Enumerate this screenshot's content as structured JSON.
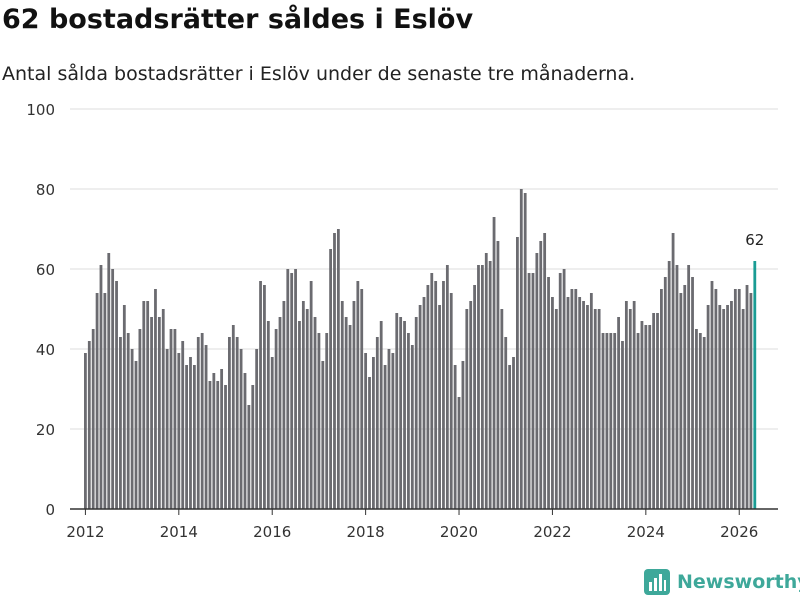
{
  "header": {
    "title": "62 bostadsrätter såldes i Eslöv",
    "subtitle": "Antal sålda bostadsrätter i Eslöv under de senaste tre månaderna."
  },
  "brand": {
    "name": "Newsworthy"
  },
  "colors": {
    "bar": "#6b6b70",
    "highlight": "#1a9c94",
    "grid": "#dcdcdc",
    "brand": "#3ea89a"
  },
  "chart_data": {
    "type": "bar",
    "title": "62 bostadsrätter såldes i Eslöv",
    "xlabel": "",
    "ylabel": "",
    "ylim": [
      0,
      100
    ],
    "yticks": [
      "0",
      "20",
      "40",
      "60",
      "80",
      "100"
    ],
    "xlim": [
      2011.67,
      2026.83
    ],
    "xticks": [
      "2012",
      "2014",
      "2016",
      "2018",
      "2020",
      "2022",
      "2024",
      "2026"
    ],
    "start": "2012-01",
    "highlight_label": "62",
    "values": [
      39,
      42,
      45,
      54,
      61,
      54,
      64,
      60,
      57,
      43,
      51,
      44,
      40,
      37,
      45,
      52,
      52,
      48,
      55,
      48,
      50,
      40,
      45,
      45,
      39,
      42,
      36,
      38,
      36,
      43,
      44,
      41,
      32,
      34,
      32,
      35,
      31,
      43,
      46,
      43,
      40,
      34,
      26,
      31,
      40,
      57,
      56,
      47,
      38,
      45,
      48,
      52,
      60,
      59,
      60,
      47,
      52,
      50,
      57,
      48,
      44,
      37,
      44,
      65,
      69,
      70,
      52,
      48,
      46,
      52,
      57,
      55,
      39,
      33,
      38,
      43,
      47,
      36,
      40,
      39,
      49,
      48,
      47,
      44,
      41,
      48,
      51,
      53,
      56,
      59,
      57,
      51,
      57,
      61,
      54,
      36,
      28,
      37,
      50,
      52,
      56,
      61,
      61,
      64,
      62,
      73,
      67,
      50,
      43,
      36,
      38,
      68,
      80,
      79,
      59,
      59,
      64,
      67,
      69,
      58,
      53,
      50,
      59,
      60,
      53,
      55,
      55,
      53,
      52,
      51,
      54,
      50,
      50,
      44,
      44,
      44,
      44,
      48,
      42,
      52,
      50,
      52,
      44,
      47,
      46,
      46,
      49,
      49,
      55,
      58,
      62,
      69,
      61,
      54,
      56,
      61,
      58,
      45,
      44,
      43,
      51,
      57,
      55,
      51,
      50,
      51,
      52,
      55,
      55,
      50,
      56,
      54,
      62
    ]
  }
}
